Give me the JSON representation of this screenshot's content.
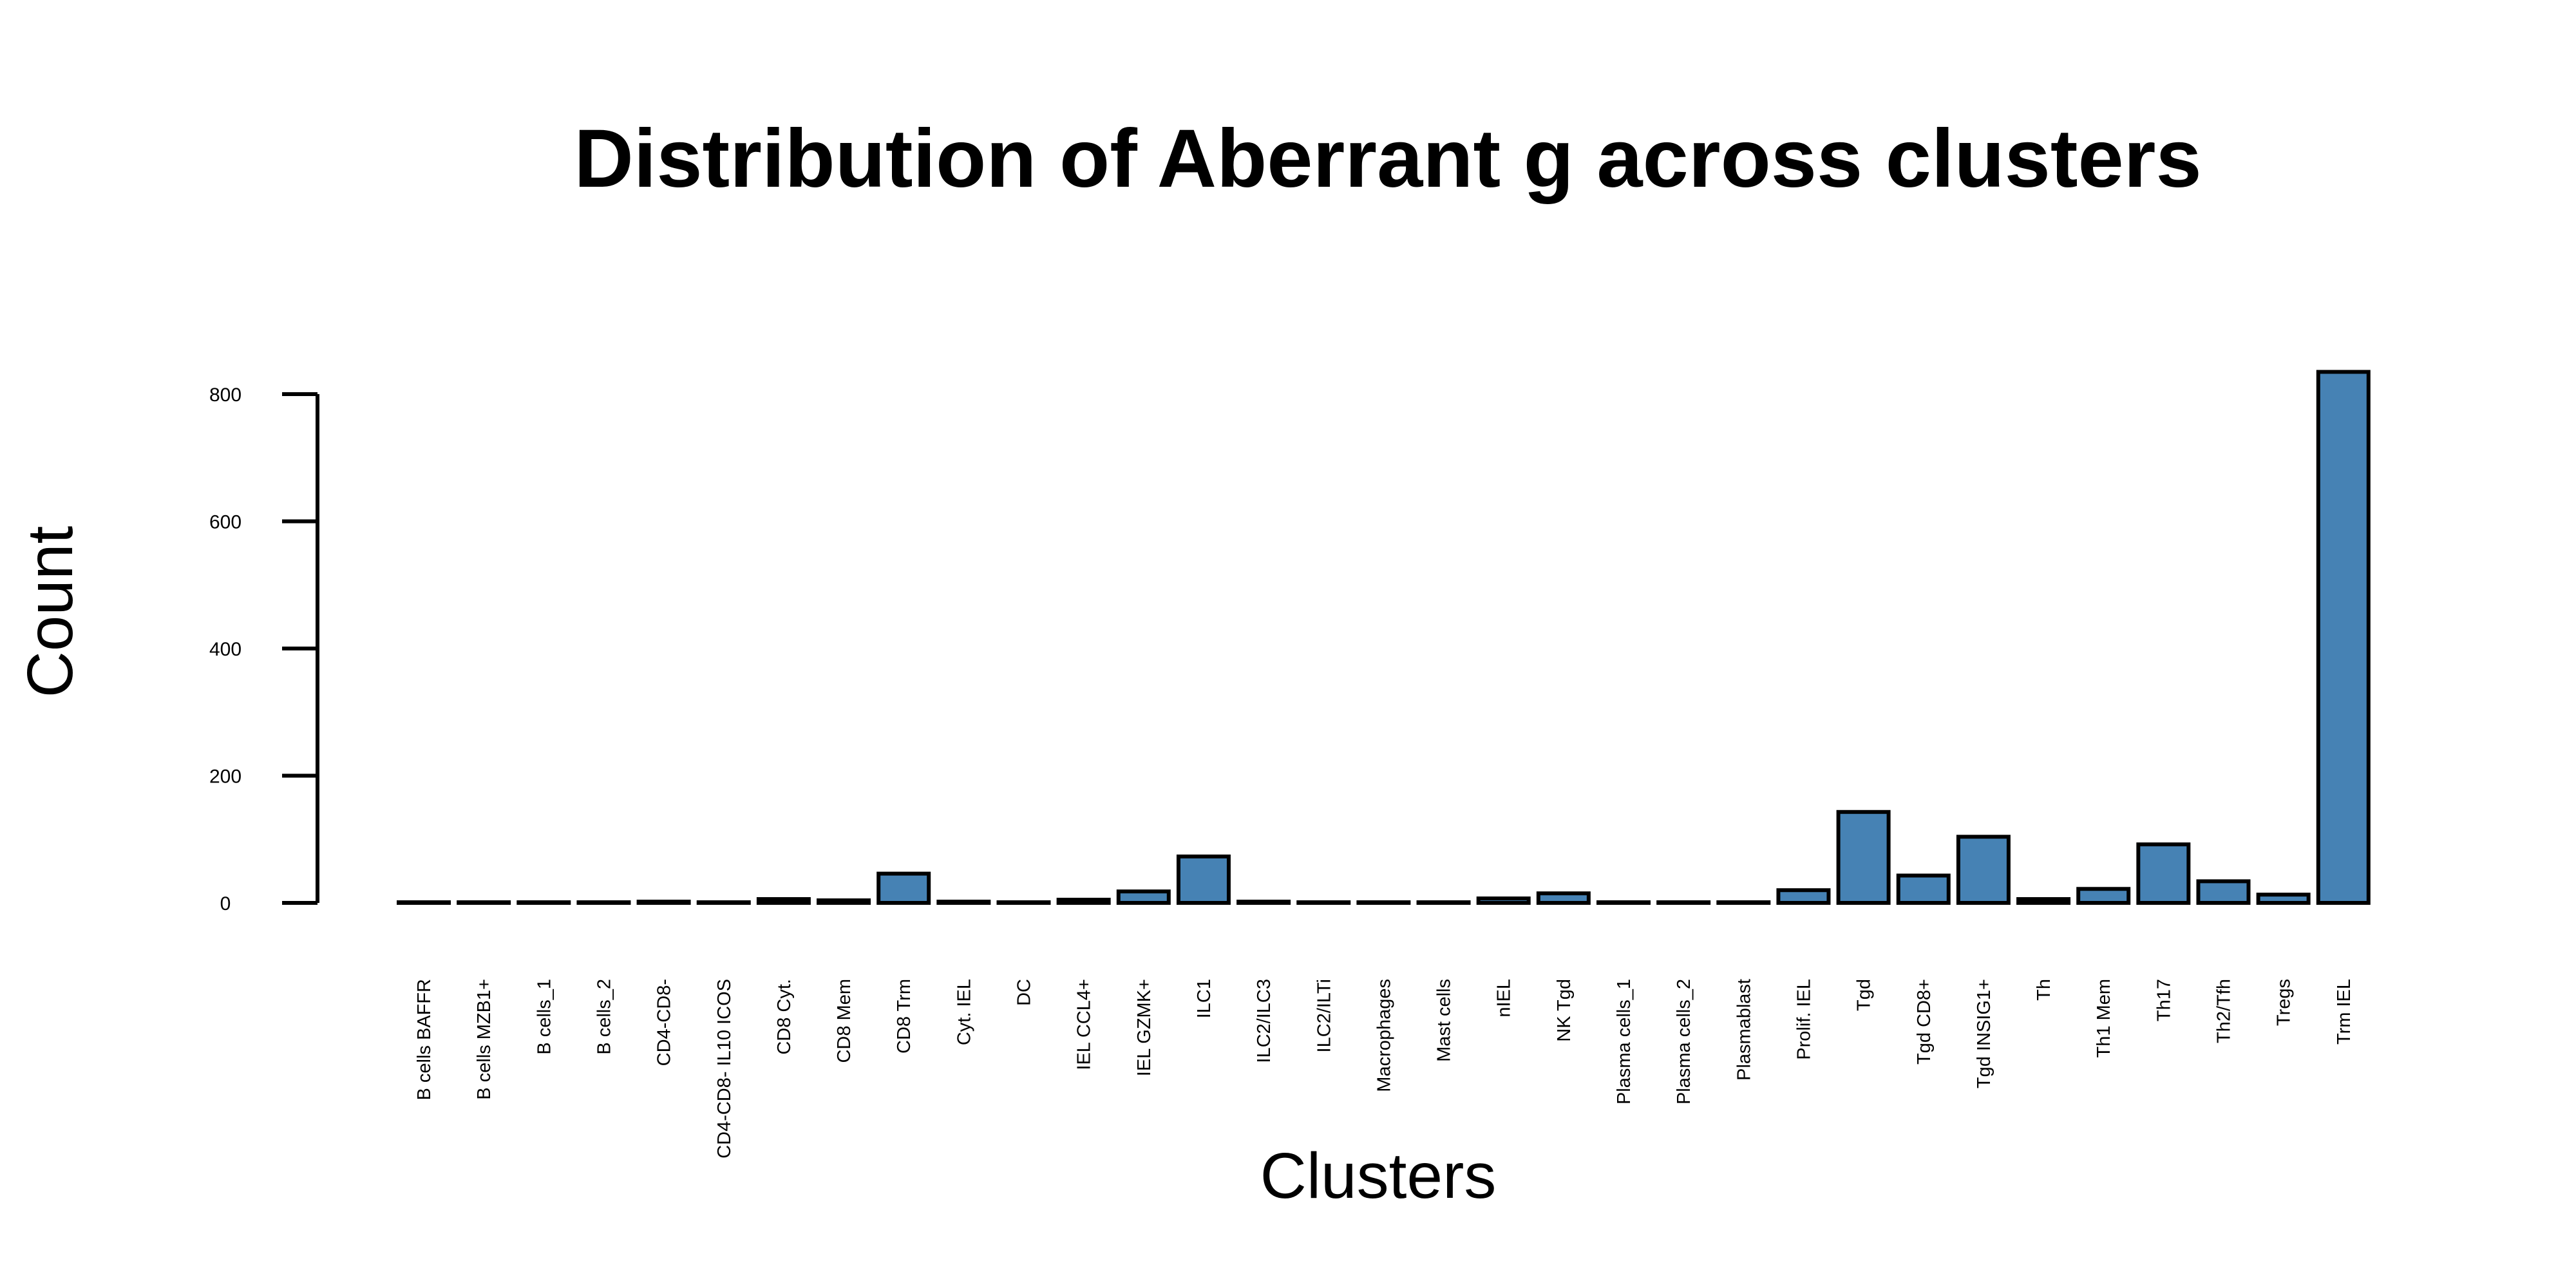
{
  "chart_data": {
    "type": "bar",
    "title": "Distribution of Aberrant g across clusters",
    "xlabel": "Clusters",
    "ylabel": "Count",
    "ylim": [
      0,
      800
    ],
    "yticks": [
      0,
      200,
      400,
      600,
      800
    ],
    "grid": false,
    "bar_color": "#4682B4",
    "categories": [
      "B cells BAFFR",
      "B cells MZB1+",
      "B cells_1",
      "B cells_2",
      "CD4-CD8-",
      "CD4-CD8- IL10 ICOS",
      "CD8 Cyt.",
      "CD8 Mem",
      "CD8 Trm",
      "Cyt. IEL",
      "DC",
      "IEL CCL4+",
      "IEL GZMK+",
      "ILC1",
      "ILC2/ILC3",
      "ILC2/ILTi",
      "Macrophages",
      "Mast cells",
      "nIEL",
      "NK Tgd",
      "Plasma cells_1",
      "Plasma cells_2",
      "Plasmablast",
      "Prolif. IEL",
      "Tgd",
      "Tgd CD8+",
      "Tgd INSIG1+",
      "Th",
      "Th1 Mem",
      "Th17",
      "Th2/Tfh",
      "Tregs",
      "Trm IEL"
    ],
    "values": [
      1,
      1,
      1,
      1,
      2,
      1,
      6,
      4,
      46,
      2,
      1,
      5,
      18,
      73,
      2,
      1,
      1,
      1,
      7,
      15,
      1,
      1,
      1,
      20,
      143,
      43,
      104,
      6,
      22,
      92,
      34,
      13,
      835
    ]
  }
}
